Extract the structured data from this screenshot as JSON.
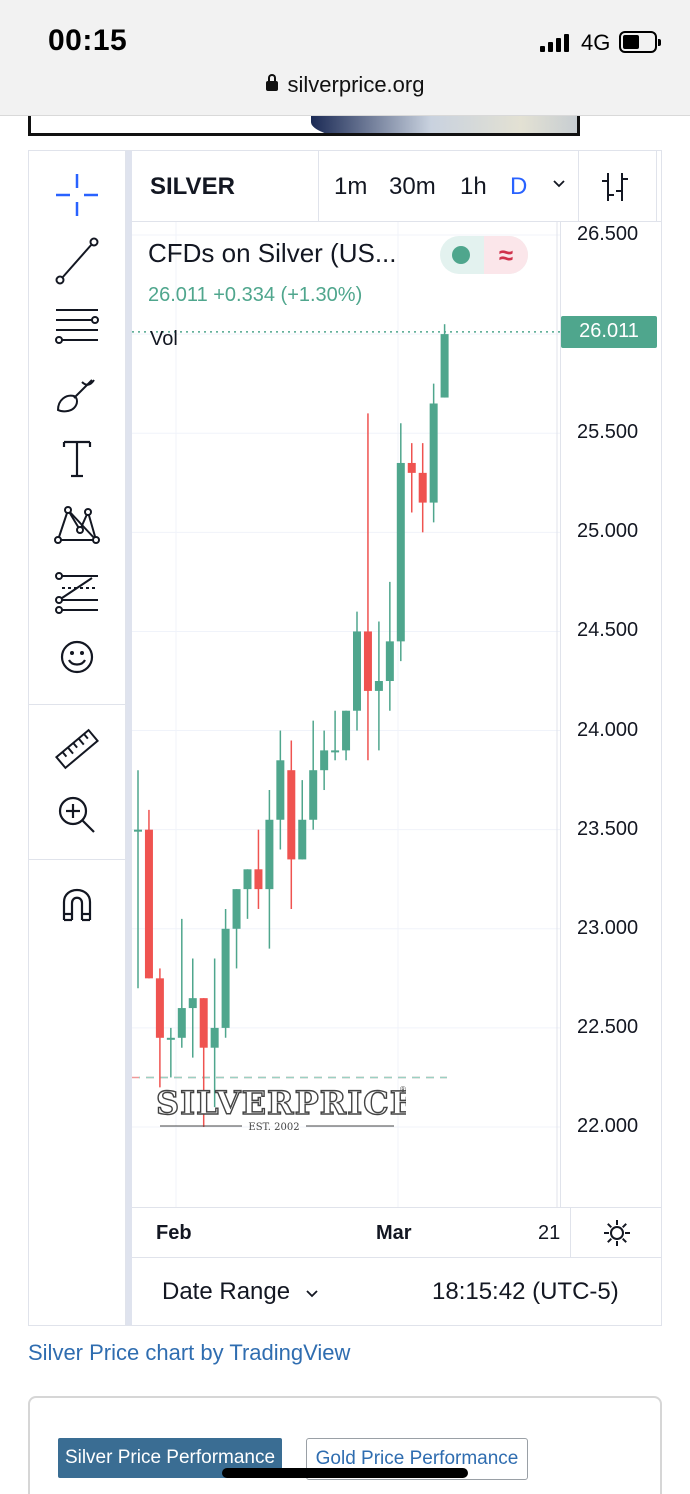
{
  "status_bar": {
    "time": "00:15",
    "network": "4G",
    "url": "silverprice.org"
  },
  "widget": {
    "symbol": "SILVER",
    "intervals": [
      {
        "label": "1m",
        "active": false
      },
      {
        "label": "30m",
        "active": false
      },
      {
        "label": "1h",
        "active": false
      },
      {
        "label": "D",
        "active": true
      }
    ],
    "legend": {
      "title": "CFDs on Silver (US...",
      "values": "26.011 +0.334 (+1.30%)",
      "volume_label": "Vol",
      "wave_symbol": "≈"
    },
    "price_axis": {
      "ticks": [
        "26.500",
        "25.500",
        "25.000",
        "24.500",
        "24.000",
        "23.500",
        "23.000",
        "22.500",
        "22.000"
      ],
      "last_price": "26.011"
    },
    "time_axis": {
      "labels": [
        "Feb",
        "Mar",
        "21"
      ]
    },
    "watermark": {
      "brand": "SILVERPRICE",
      "sub": "EST. 2002"
    },
    "bottom": {
      "date_range": "Date Range",
      "clock": "18:15:42 (UTC-5)"
    },
    "tools": [
      "crosshair-icon",
      "trend-line-icon",
      "fib-levels-icon",
      "brush-icon",
      "text-icon",
      "pattern-icon",
      "prediction-icon",
      "emoji-icon",
      "ruler-icon",
      "zoom-in-icon",
      "magnet-icon"
    ]
  },
  "chart_data": {
    "type": "candlestick",
    "title": "CFDs on Silver (US...",
    "ylim": [
      21.6,
      26.55
    ],
    "x_labels": [
      "Feb",
      "Mar",
      "21"
    ],
    "last": 26.011,
    "up_color": "#4fa68d",
    "down_color": "#ef5350",
    "candles": [
      {
        "o": 23.5,
        "h": 23.8,
        "l": 22.7,
        "c": 23.5
      },
      {
        "o": 23.5,
        "h": 23.6,
        "l": 22.75,
        "c": 22.75
      },
      {
        "o": 22.75,
        "h": 22.8,
        "l": 22.2,
        "c": 22.45
      },
      {
        "o": 22.45,
        "h": 22.5,
        "l": 22.25,
        "c": 22.45
      },
      {
        "o": 22.45,
        "h": 23.05,
        "l": 22.4,
        "c": 22.6
      },
      {
        "o": 22.6,
        "h": 22.85,
        "l": 22.35,
        "c": 22.65
      },
      {
        "o": 22.65,
        "h": 22.65,
        "l": 22.0,
        "c": 22.4
      },
      {
        "o": 22.4,
        "h": 22.85,
        "l": 22.1,
        "c": 22.5
      },
      {
        "o": 22.5,
        "h": 23.1,
        "l": 22.45,
        "c": 23.0
      },
      {
        "o": 23.0,
        "h": 23.2,
        "l": 22.8,
        "c": 23.2
      },
      {
        "o": 23.2,
        "h": 23.3,
        "l": 23.05,
        "c": 23.3
      },
      {
        "o": 23.3,
        "h": 23.5,
        "l": 23.1,
        "c": 23.2
      },
      {
        "o": 23.2,
        "h": 23.7,
        "l": 22.9,
        "c": 23.55
      },
      {
        "o": 23.55,
        "h": 24.0,
        "l": 23.4,
        "c": 23.85
      },
      {
        "o": 23.8,
        "h": 23.95,
        "l": 23.1,
        "c": 23.35
      },
      {
        "o": 23.35,
        "h": 23.75,
        "l": 23.35,
        "c": 23.55
      },
      {
        "o": 23.55,
        "h": 24.05,
        "l": 23.5,
        "c": 23.8
      },
      {
        "o": 23.8,
        "h": 24.0,
        "l": 23.7,
        "c": 23.9
      },
      {
        "o": 23.9,
        "h": 24.1,
        "l": 23.85,
        "c": 23.9
      },
      {
        "o": 23.9,
        "h": 24.1,
        "l": 23.85,
        "c": 24.1
      },
      {
        "o": 24.1,
        "h": 24.6,
        "l": 24.0,
        "c": 24.5
      },
      {
        "o": 24.5,
        "h": 25.6,
        "l": 23.85,
        "c": 24.2
      },
      {
        "o": 24.2,
        "h": 24.55,
        "l": 23.9,
        "c": 24.25
      },
      {
        "o": 24.25,
        "h": 24.75,
        "l": 24.1,
        "c": 24.45
      },
      {
        "o": 24.45,
        "h": 25.55,
        "l": 24.35,
        "c": 25.35
      },
      {
        "o": 25.35,
        "h": 25.45,
        "l": 25.1,
        "c": 25.3
      },
      {
        "o": 25.3,
        "h": 25.45,
        "l": 25.0,
        "c": 25.15
      },
      {
        "o": 25.15,
        "h": 25.75,
        "l": 25.05,
        "c": 25.65
      },
      {
        "o": 25.68,
        "h": 26.05,
        "l": 25.68,
        "c": 26.0
      }
    ],
    "reference_lines": [
      26.011,
      22.25
    ]
  }
}
